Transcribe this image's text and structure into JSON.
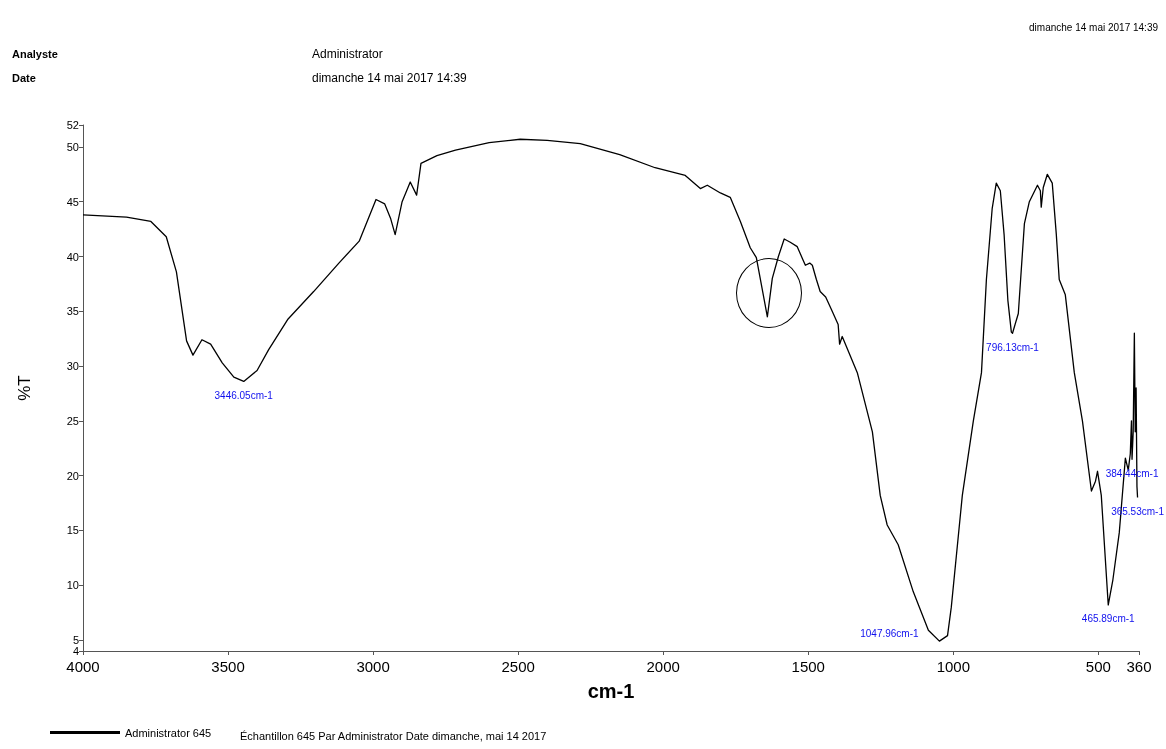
{
  "chart_data": {
    "type": "line",
    "xlabel": "cm-1",
    "ylabel": "%T",
    "legend": "bottom left",
    "grid": false,
    "marker": "none",
    "line_style": "solid",
    "xlim": [
      4000,
      360
    ],
    "xticks": [
      4000,
      3500,
      3000,
      2500,
      2000,
      1500,
      1000,
      500,
      360
    ],
    "ylim": [
      4,
      52
    ],
    "yticks": [
      4,
      5,
      10,
      15,
      20,
      25,
      30,
      35,
      40,
      45,
      50,
      52
    ],
    "annotations": [
      "Analyste",
      "Administrator",
      "Date",
      "dimanche 14 mai 2017 14:39",
      "dimanche 14 mai 2017 14:39",
      "Échantillon 645 Par Administrator Date dimanche, mai 14 2017",
      {
        "text": "3446.05cm-1",
        "x": 3446,
        "y": 28.6
      },
      {
        "text": "1047.96cm-1",
        "x": 1048,
        "y": 4.9
      },
      {
        "text": "796.13cm-1",
        "x": 796,
        "y": 33.0
      },
      {
        "text": "465.89cm-1",
        "x": 466,
        "y": 8.2
      },
      {
        "text": "384.44cm-1",
        "x": 384,
        "y": 21.5
      },
      {
        "text": "365.53cm-1",
        "x": 365,
        "y": 18
      }
    ],
    "series": [
      {
        "name": "Administrator 645",
        "color": "#000000",
        "x": [
          4000,
          3850,
          3766,
          3713,
          3678,
          3643,
          3621,
          3590,
          3560,
          3520,
          3480,
          3446,
          3400,
          3360,
          3293,
          3205,
          3118,
          3048,
          2990,
          2960,
          2940,
          2924,
          2900,
          2872,
          2850,
          2835,
          2780,
          2716,
          2600,
          2493,
          2400,
          2286,
          2150,
          2028,
          1924,
          1872,
          1848,
          1803,
          1769,
          1734,
          1700,
          1679,
          1641,
          1624,
          1603,
          1583,
          1562,
          1538,
          1520,
          1510,
          1495,
          1486,
          1472,
          1459,
          1440,
          1421,
          1397,
          1392,
          1383,
          1331,
          1279,
          1252,
          1228,
          1190,
          1138,
          1086,
          1048,
          1020,
          1007,
          969,
          931,
          903,
          886,
          866,
          852,
          838,
          825,
          812,
          800,
          796,
          776,
          755,
          738,
          710,
          700,
          697,
          690,
          676,
          659,
          645,
          635,
          614,
          583,
          555,
          524,
          510,
          503,
          490,
          466,
          450,
          428,
          407,
          397,
          390,
          386,
          384,
          380,
          376,
          373,
          370,
          367,
          365
        ],
        "values": [
          43.8,
          43.6,
          43.2,
          41.8,
          38.6,
          32.3,
          31.0,
          32.4,
          32.0,
          30.3,
          29.0,
          28.6,
          29.6,
          31.5,
          34.3,
          36.8,
          39.4,
          41.4,
          45.2,
          44.8,
          43.5,
          42.0,
          45.0,
          46.8,
          45.6,
          48.5,
          49.2,
          49.7,
          50.4,
          50.7,
          50.6,
          50.3,
          49.3,
          48.1,
          47.4,
          46.2,
          46.5,
          45.8,
          45.4,
          43.2,
          40.8,
          39.9,
          34.5,
          38.0,
          40.0,
          41.6,
          41.3,
          40.9,
          39.8,
          39.2,
          39.4,
          39.2,
          37.9,
          36.8,
          36.3,
          35.2,
          33.8,
          32.0,
          32.7,
          29.4,
          24.0,
          18.2,
          15.5,
          13.7,
          9.4,
          5.9,
          4.9,
          5.4,
          8.0,
          18.2,
          25,
          29.4,
          37.9,
          44.4,
          46.7,
          46.0,
          42.0,
          36.0,
          33.1,
          33.0,
          34.8,
          43,
          45,
          46.5,
          46.0,
          44.5,
          46.3,
          47.5,
          46.7,
          42.0,
          37.9,
          36.5,
          29.4,
          25,
          18.6,
          19.5,
          20.4,
          18.2,
          8.2,
          10.5,
          14.8,
          21.6,
          20.5,
          22.0,
          25,
          21.5,
          24,
          33,
          24,
          28,
          19,
          18
        ]
      }
    ]
  }
}
